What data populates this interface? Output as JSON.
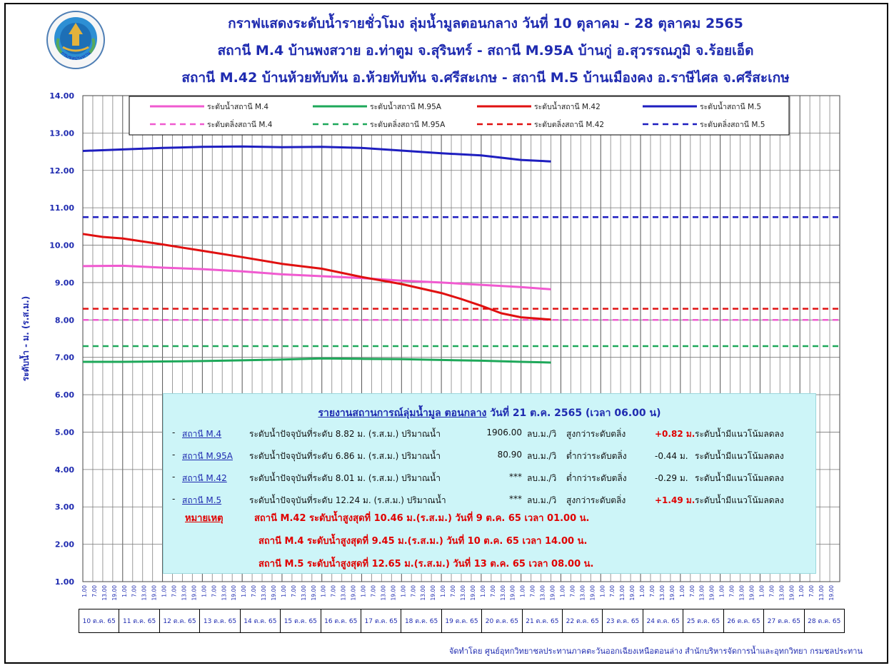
{
  "titles": {
    "line1": "กราฟแสดงระดับน้ำรายชั่วโมง ลุ่มน้ำมูลตอนกลาง วันที่ 10 ตุลาคม - 28 ตุลาคม 2565",
    "line2": "สถานี M.4 บ้านพงสวาย อ.ท่าตูม จ.สุรินทร์ - สถานี M.95A บ้านกู่ อ.สุวรรณภูมิ จ.ร้อยเอ็ด",
    "line3": "สถานี M.42 บ้านห้วยทับทัน อ.ห้วยทับทัน จ.ศรีสะเกษ - สถานี M.5 บ้านเมืองคง อ.ราษีไศล จ.ศรีสะเกษ"
  },
  "logo": {
    "text": "กรมชลประทาน"
  },
  "colors": {
    "M4": "#f05ad0",
    "M95A": "#1ea85a",
    "M42": "#e01010",
    "M5": "#1e1ebf",
    "title": "#1f2bb0",
    "infoBox": "#cdf5f8"
  },
  "chart_data": {
    "type": "line",
    "ylabel": "ระดับน้ำ  -  ม. (ร.ส.ม.)",
    "ylim": [
      1,
      14
    ],
    "yticks": [
      "1.00",
      "2.00",
      "3.00",
      "4.00",
      "5.00",
      "6.00",
      "7.00",
      "8.00",
      "9.00",
      "10.00",
      "11.00",
      "12.00",
      "13.00",
      "14.00"
    ],
    "xtick_hours": [
      "1.00",
      "7.00",
      "13.00",
      "19.00"
    ],
    "days": [
      "10 ต.ค. 65",
      "11 ต.ค. 65",
      "12 ต.ค. 65",
      "13 ต.ค. 65",
      "14 ต.ค. 65",
      "15 ต.ค. 65",
      "16 ต.ค. 65",
      "17 ต.ค. 65",
      "18 ต.ค. 65",
      "19 ต.ค. 65",
      "20 ต.ค. 65",
      "21 ต.ค. 65",
      "22 ต.ค. 65",
      "23 ต.ค. 65",
      "24 ต.ค. 65",
      "25 ต.ค. 65",
      "26 ต.ค. 65",
      "27 ต.ค. 65",
      "28 ต.ค. 65"
    ],
    "series": [
      {
        "name": "ระดับน้ำสถานี M.4",
        "color": "#f05ad0",
        "points": [
          [
            0,
            9.44
          ],
          [
            1,
            9.45
          ],
          [
            2,
            9.4
          ],
          [
            3,
            9.36
          ],
          [
            4,
            9.3
          ],
          [
            5,
            9.22
          ],
          [
            6,
            9.17
          ],
          [
            7,
            9.12
          ],
          [
            8,
            9.05
          ],
          [
            9,
            9.0
          ],
          [
            10,
            8.94
          ],
          [
            11,
            8.88
          ],
          [
            11.75,
            8.82
          ]
        ]
      },
      {
        "name": "ระดับน้ำสถานี M.95A",
        "color": "#1ea85a",
        "points": [
          [
            0,
            6.88
          ],
          [
            1,
            6.88
          ],
          [
            2,
            6.89
          ],
          [
            3,
            6.9
          ],
          [
            4,
            6.92
          ],
          [
            5,
            6.94
          ],
          [
            6,
            6.97
          ],
          [
            7,
            6.96
          ],
          [
            8,
            6.95
          ],
          [
            9,
            6.93
          ],
          [
            10,
            6.91
          ],
          [
            11,
            6.88
          ],
          [
            11.75,
            6.86
          ]
        ]
      },
      {
        "name": "ระดับน้ำสถานี M.42",
        "color": "#e01010",
        "points": [
          [
            0,
            10.3
          ],
          [
            0.5,
            10.22
          ],
          [
            1,
            10.18
          ],
          [
            2,
            10.02
          ],
          [
            3,
            9.85
          ],
          [
            4,
            9.68
          ],
          [
            5,
            9.5
          ],
          [
            6,
            9.37
          ],
          [
            7,
            9.15
          ],
          [
            8,
            8.96
          ],
          [
            9,
            8.72
          ],
          [
            9.5,
            8.56
          ],
          [
            10,
            8.38
          ],
          [
            10.5,
            8.18
          ],
          [
            11,
            8.07
          ],
          [
            11.75,
            8.01
          ]
        ]
      },
      {
        "name": "ระดับน้ำสถานี M.5",
        "color": "#1e1ebf",
        "points": [
          [
            0,
            12.52
          ],
          [
            1,
            12.56
          ],
          [
            2,
            12.6
          ],
          [
            3,
            12.63
          ],
          [
            4,
            12.64
          ],
          [
            5,
            12.62
          ],
          [
            6,
            12.63
          ],
          [
            7,
            12.6
          ],
          [
            8,
            12.53
          ],
          [
            9,
            12.46
          ],
          [
            10,
            12.4
          ],
          [
            11,
            12.28
          ],
          [
            11.75,
            12.24
          ]
        ]
      }
    ],
    "thresholds": [
      {
        "name": "ระดับตลิ่งสถานี M.4",
        "value": 8.0,
        "color": "#f05ad0"
      },
      {
        "name": "ระดับตลิ่งสถานี M.95A",
        "value": 7.3,
        "color": "#1ea85a"
      },
      {
        "name": "ระดับตลิ่งสถานี M.42",
        "value": 8.3,
        "color": "#e01010"
      },
      {
        "name": "ระดับตลิ่งสถานี M.5",
        "value": 10.75,
        "color": "#1e1ebf"
      }
    ],
    "legend_position": "top-center",
    "grid": true
  },
  "report": {
    "heading_underlined": "รายงานสถานการณ์ลุ่มน้ำมูล ตอนกลาง",
    "heading_date": "วันที่ 21 ต.ค. 2565",
    "heading_time": "(เวลา 06.00 น)",
    "rows": [
      {
        "dash": "-",
        "station": "สถานี M.4",
        "level": "ระดับน้ำปัจจุบันที่ระดับ 8.82 ม. (ร.ส.ม.) ปริมาณน้ำ",
        "flow": "1906.00",
        "unit": "ลบ.ม./วิ",
        "comp": "สูงกว่าระดับตลิ่ง",
        "diff": "+0.82 ม.",
        "diff_red": true,
        "trend": "ระดับน้ำมีแนวโน้มลดลง"
      },
      {
        "dash": "-",
        "station": "สถานี M.95A",
        "level": "ระดับน้ำปัจจุบันที่ระดับ 6.86 ม. (ร.ส.ม.) ปริมาณน้ำ",
        "flow": "80.90",
        "unit": "ลบ.ม./วิ",
        "comp": "ต่ำกว่าระดับตลิ่ง",
        "diff": "-0.44 ม.",
        "diff_red": false,
        "trend": "ระดับน้ำมีแนวโน้มลดลง"
      },
      {
        "dash": "-",
        "station": "สถานี M.42",
        "level": "ระดับน้ำปัจจุบันที่ระดับ 8.01 ม. (ร.ส.ม.) ปริมาณน้ำ",
        "flow": "***",
        "unit": "ลบ.ม./วิ",
        "comp": "ต่ำกว่าระดับตลิ่ง",
        "diff": "-0.29 ม.",
        "diff_red": false,
        "trend": "ระดับน้ำมีแนวโน้มลดลง"
      },
      {
        "dash": "-",
        "station": "สถานี M.5",
        "level": "ระดับน้ำปัจจุบันที่ระดับ 12.24 ม. (ร.ส.ม.) ปริมาณน้ำ",
        "flow": "***",
        "unit": "ลบ.ม./วิ",
        "comp": "สูงกว่าระดับตลิ่ง",
        "diff": "+1.49 ม.",
        "diff_red": true,
        "trend": "ระดับน้ำมีแนวโน้มลดลง"
      }
    ],
    "note_label": "หมายเหตุ",
    "notes": [
      "สถานี M.42 ระดับน้ำสูงสุดที่ 10.46 ม.(ร.ส.ม.) วันที่ 9 ต.ค. 65  เวลา 01.00 น.",
      "สถานี M.4 ระดับน้ำสูงสุดที่   9.45 ม.(ร.ส.ม.) วันที่ 10 ต.ค. 65  เวลา 14.00 น.",
      "สถานี M.5 ระดับน้ำสูงสุดที่ 12.65 ม.(ร.ส.ม.) วันที่ 13 ต.ค. 65  เวลา 08.00 น."
    ]
  },
  "credit": "จัดทำโดย ศูนย์อุทกวิทยาชลประทานภาคตะวันออกเฉียงเหนือตอนล่าง สำนักบริหารจัดการน้ำและอุทกวิทยา กรมชลประทาน"
}
